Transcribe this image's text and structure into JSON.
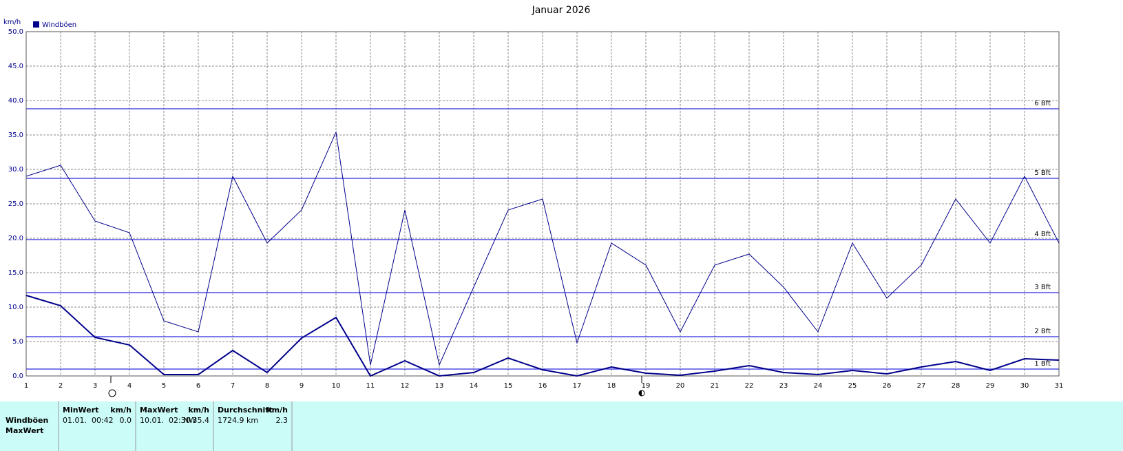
{
  "chart_data": {
    "type": "line",
    "title": "Januar 2026",
    "y_label": "km/h",
    "x": [
      1,
      2,
      3,
      4,
      5,
      6,
      7,
      8,
      9,
      10,
      11,
      12,
      13,
      14,
      15,
      16,
      17,
      18,
      19,
      20,
      21,
      22,
      23,
      24,
      25,
      26,
      27,
      28,
      29,
      30,
      31
    ],
    "series": [
      {
        "name": "Windböen",
        "color": "#00008b",
        "line_width": 1,
        "values": [
          29.0,
          30.6,
          22.5,
          20.8,
          8.0,
          6.4,
          29.0,
          19.3,
          24.1,
          35.4,
          1.6,
          24.1,
          1.6,
          12.9,
          24.1,
          25.7,
          4.8,
          19.3,
          16.1,
          6.4,
          16.1,
          17.7,
          12.9,
          6.4,
          19.3,
          11.3,
          16.1,
          25.7,
          19.3,
          29.0,
          19.3
        ]
      },
      {
        "color": "#00008b",
        "line_width": 2,
        "values": [
          11.7,
          10.2,
          5.6,
          4.5,
          0.2,
          0.2,
          3.7,
          0.5,
          5.5,
          8.5,
          0.0,
          2.2,
          0.0,
          0.5,
          2.6,
          0.9,
          0.0,
          1.3,
          0.4,
          0.1,
          0.7,
          1.5,
          0.5,
          0.2,
          0.8,
          0.3,
          1.3,
          2.1,
          0.8,
          2.5,
          2.3
        ]
      }
    ],
    "xlim": [
      1,
      31
    ],
    "xticks": [
      1,
      2,
      3,
      4,
      5,
      6,
      7,
      8,
      9,
      10,
      11,
      12,
      13,
      14,
      15,
      16,
      17,
      18,
      19,
      20,
      21,
      22,
      23,
      24,
      25,
      26,
      27,
      28,
      29,
      30,
      31
    ],
    "ylim": [
      0,
      50
    ],
    "yticks": [
      {
        "value": 0,
        "label": "0.0"
      },
      {
        "value": 5,
        "label": "5.0"
      },
      {
        "value": 10,
        "label": "10.0"
      },
      {
        "value": 15,
        "label": "15.0"
      },
      {
        "value": 20,
        "label": "20.0"
      },
      {
        "value": 25,
        "label": "25.0"
      },
      {
        "value": 30,
        "label": "30.0"
      },
      {
        "value": 35,
        "label": "35.0"
      },
      {
        "value": 40,
        "label": "40.0"
      },
      {
        "value": 45,
        "label": "45.0"
      },
      {
        "value": 50,
        "label": "50.0"
      }
    ],
    "grid": true,
    "legend": "top-left",
    "reference_lines": [
      {
        "value": 1.0,
        "label": "1 Bft"
      },
      {
        "value": 5.7,
        "label": "2 Bft"
      },
      {
        "value": 12.1,
        "label": "3 Bft"
      },
      {
        "value": 19.8,
        "label": "4 Bft"
      },
      {
        "value": 28.7,
        "label": "5 Bft"
      },
      {
        "value": 38.8,
        "label": "6 Bft"
      }
    ],
    "reference_color": "#2a2ae0"
  },
  "table": {
    "columns": [
      {
        "title": "MinWert",
        "unit": "km/h"
      },
      {
        "title": "MaxWert",
        "unit": "km/h"
      },
      {
        "title": "Durchschnitt",
        "unit": "km/h"
      }
    ],
    "rows": [
      {
        "label": "Windböen",
        "cells": [
          [
            "01.01.  00:42",
            "0.0"
          ],
          [
            "10.01.  02:30",
            "NW",
            "35.4"
          ],
          [
            "1724.9 km",
            "2.3"
          ]
        ]
      },
      {
        "label": "MaxWert",
        "cells": []
      }
    ]
  }
}
